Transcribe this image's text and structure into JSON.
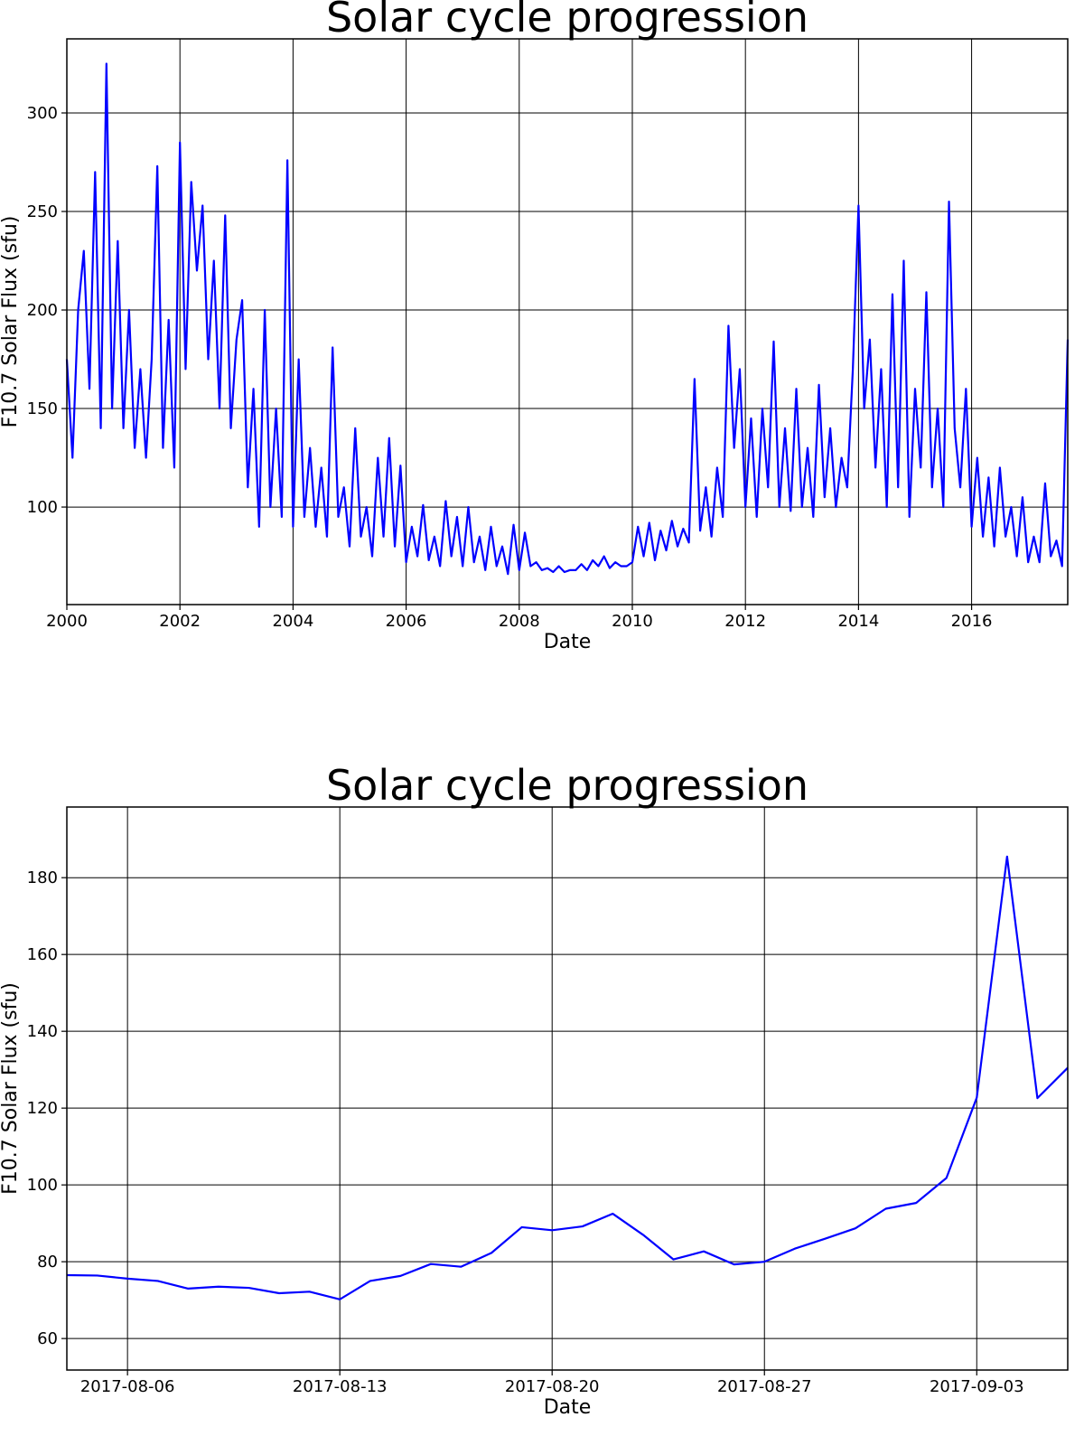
{
  "chart_data": [
    {
      "type": "line",
      "title": "Solar cycle progression",
      "x_label": "Date",
      "y_label": "F10.7 Solar Flux (sfu)",
      "xlim": [
        2000,
        2017.7
      ],
      "ylim": [
        50.5,
        337.6
      ],
      "xticks": [
        2000,
        2002,
        2004,
        2006,
        2008,
        2010,
        2012,
        2014,
        2016
      ],
      "yticks": [
        100,
        150,
        200,
        250,
        300
      ],
      "grid": true,
      "x": [
        2000.0,
        2000.1,
        2000.2,
        2000.3,
        2000.4,
        2000.5,
        2000.6,
        2000.7,
        2000.8,
        2000.9,
        2001.0,
        2001.1,
        2001.2,
        2001.3,
        2001.4,
        2001.5,
        2001.6,
        2001.7,
        2001.8,
        2001.9,
        2002.0,
        2002.1,
        2002.2,
        2002.3,
        2002.4,
        2002.5,
        2002.6,
        2002.7,
        2002.8,
        2002.9,
        2003.0,
        2003.1,
        2003.2,
        2003.3,
        2003.4,
        2003.5,
        2003.6,
        2003.7,
        2003.8,
        2003.9,
        2004.0,
        2004.1,
        2004.2,
        2004.3,
        2004.4,
        2004.5,
        2004.6,
        2004.7,
        2004.8,
        2004.9,
        2005.0,
        2005.1,
        2005.2,
        2005.3,
        2005.4,
        2005.5,
        2005.6,
        2005.7,
        2005.8,
        2005.9,
        2006.0,
        2006.1,
        2006.2,
        2006.3,
        2006.4,
        2006.5,
        2006.6,
        2006.7,
        2006.8,
        2006.9,
        2007.0,
        2007.1,
        2007.2,
        2007.3,
        2007.4,
        2007.5,
        2007.6,
        2007.7,
        2007.8,
        2007.9,
        2008.0,
        2008.1,
        2008.2,
        2008.3,
        2008.4,
        2008.5,
        2008.6,
        2008.7,
        2008.8,
        2008.9,
        2009.0,
        2009.1,
        2009.2,
        2009.3,
        2009.4,
        2009.5,
        2009.6,
        2009.7,
        2009.8,
        2009.9,
        2010.0,
        2010.1,
        2010.2,
        2010.3,
        2010.4,
        2010.5,
        2010.6,
        2010.7,
        2010.8,
        2010.9,
        2011.0,
        2011.1,
        2011.2,
        2011.3,
        2011.4,
        2011.5,
        2011.6,
        2011.7,
        2011.8,
        2011.9,
        2012.0,
        2012.1,
        2012.2,
        2012.3,
        2012.4,
        2012.5,
        2012.6,
        2012.7,
        2012.8,
        2012.9,
        2013.0,
        2013.1,
        2013.2,
        2013.3,
        2013.4,
        2013.5,
        2013.6,
        2013.7,
        2013.8,
        2013.9,
        2014.0,
        2014.1,
        2014.2,
        2014.3,
        2014.4,
        2014.5,
        2014.6,
        2014.7,
        2014.8,
        2014.9,
        2015.0,
        2015.1,
        2015.2,
        2015.3,
        2015.4,
        2015.5,
        2015.6,
        2015.7,
        2015.8,
        2015.9,
        2016.0,
        2016.1,
        2016.2,
        2016.3,
        2016.4,
        2016.5,
        2016.6,
        2016.7,
        2016.8,
        2016.9,
        2017.0,
        2017.1,
        2017.2,
        2017.3,
        2017.4,
        2017.5,
        2017.6,
        2017.7
      ],
      "series": [
        {
          "color": "#0000ff",
          "values": [
            175,
            125,
            200,
            230,
            160,
            270,
            140,
            325,
            150,
            235,
            140,
            200,
            130,
            170,
            125,
            175,
            273,
            130,
            195,
            120,
            285,
            170,
            265,
            220,
            253,
            175,
            225,
            150,
            248,
            140,
            185,
            205,
            110,
            160,
            90,
            200,
            100,
            150,
            95,
            276,
            90,
            175,
            95,
            130,
            90,
            120,
            85,
            181,
            95,
            110,
            80,
            140,
            85,
            100,
            75,
            125,
            85,
            135,
            80,
            121,
            72,
            90,
            75,
            101,
            73,
            85,
            70,
            103,
            75,
            95,
            70,
            100,
            72,
            85,
            68,
            90,
            70,
            80,
            66,
            91,
            68,
            87,
            70,
            72,
            68,
            69,
            67,
            70,
            67,
            68,
            68,
            71,
            68,
            73,
            70,
            75,
            69,
            72,
            70,
            70,
            72,
            90,
            75,
            92,
            73,
            88,
            78,
            93,
            80,
            89,
            82,
            165,
            88,
            110,
            85,
            120,
            95,
            192,
            130,
            170,
            100,
            145,
            95,
            150,
            110,
            184,
            100,
            140,
            98,
            160,
            100,
            130,
            95,
            162,
            105,
            140,
            100,
            125,
            110,
            170,
            253,
            150,
            185,
            120,
            170,
            100,
            208,
            110,
            225,
            95,
            160,
            120,
            209,
            110,
            150,
            100,
            255,
            140,
            110,
            160,
            90,
            125,
            85,
            115,
            80,
            120,
            85,
            100,
            75,
            105,
            72,
            85,
            72,
            112,
            75,
            83,
            70,
            185
          ]
        }
      ]
    },
    {
      "type": "line",
      "title": "Solar cycle progression",
      "x_label": "Date",
      "y_label": "F10.7 Solar Flux (sfu)",
      "xlim": [
        "2017-08-04",
        "2017-09-06"
      ],
      "ylim": [
        51.8,
        198.4
      ],
      "xticks": [
        "2017-08-06",
        "2017-08-13",
        "2017-08-20",
        "2017-08-27",
        "2017-09-03"
      ],
      "yticks": [
        60,
        80,
        100,
        120,
        140,
        160,
        180
      ],
      "grid": true,
      "x": [
        "2017-08-04",
        "2017-08-05",
        "2017-08-06",
        "2017-08-07",
        "2017-08-08",
        "2017-08-09",
        "2017-08-10",
        "2017-08-11",
        "2017-08-12",
        "2017-08-13",
        "2017-08-14",
        "2017-08-15",
        "2017-08-16",
        "2017-08-17",
        "2017-08-18",
        "2017-08-19",
        "2017-08-20",
        "2017-08-21",
        "2017-08-22",
        "2017-08-23",
        "2017-08-24",
        "2017-08-25",
        "2017-08-26",
        "2017-08-27",
        "2017-08-28",
        "2017-08-29",
        "2017-08-30",
        "2017-08-31",
        "2017-09-01",
        "2017-09-02",
        "2017-09-03",
        "2017-09-04",
        "2017-09-05",
        "2017-09-06"
      ],
      "series": [
        {
          "color": "#0000ff",
          "values": [
            76.5,
            76.4,
            75.6,
            75,
            73,
            73.5,
            73.2,
            71.8,
            72.2,
            70.2,
            75,
            76.3,
            79.4,
            78.7,
            82.3,
            89,
            88.2,
            89.2,
            92.5,
            87,
            80.6,
            82.7,
            79.3,
            80,
            83.4,
            86,
            88.7,
            93.8,
            95.3,
            101.8,
            122.7,
            185.5,
            122.6,
            130.5
          ]
        }
      ]
    }
  ]
}
